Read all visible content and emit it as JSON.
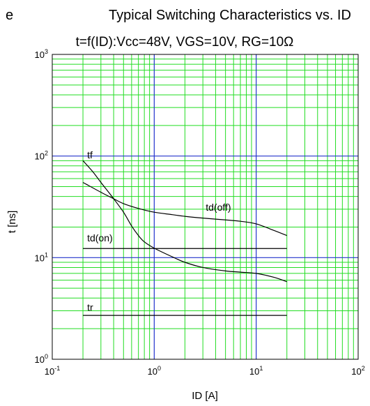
{
  "chart_data": {
    "type": "line",
    "panel_letter": "e",
    "title": "Typical Switching Characteristics vs. ID",
    "subtitle": "t=f(ID):Vcc=48V, VGS=10V, RG=10Ω",
    "xlabel": "ID [A]",
    "ylabel": "t [ns]",
    "x_scale": "log",
    "y_scale": "log",
    "xlim": [
      0.1,
      100
    ],
    "ylim": [
      1,
      1000
    ],
    "x_ticks": [
      {
        "base": "10",
        "exp": "-1"
      },
      {
        "base": "10",
        "exp": "0"
      },
      {
        "base": "10",
        "exp": "1"
      },
      {
        "base": "10",
        "exp": "2"
      }
    ],
    "y_ticks": [
      {
        "base": "10",
        "exp": "0"
      },
      {
        "base": "10",
        "exp": "1"
      },
      {
        "base": "10",
        "exp": "2"
      },
      {
        "base": "10",
        "exp": "3"
      }
    ],
    "grid": true,
    "colors": {
      "minor_grid": "#22dd22",
      "major_grid": "#2233cc",
      "curve": "#000000"
    },
    "series": [
      {
        "name": "tf",
        "x": [
          0.2,
          0.25,
          0.3,
          0.4,
          0.5,
          0.6,
          0.7,
          0.8,
          1.0,
          1.5,
          2,
          3,
          5,
          7,
          10,
          15,
          20
        ],
        "y": [
          90,
          70,
          55,
          38,
          28,
          20.5,
          16.5,
          14.3,
          12.4,
          10.2,
          9.0,
          8.0,
          7.4,
          7.2,
          7.0,
          6.4,
          5.8
        ]
      },
      {
        "name": "td(off)",
        "x": [
          0.2,
          0.3,
          0.4,
          0.5,
          0.7,
          1.0,
          1.5,
          2,
          3,
          5,
          7,
          10,
          15,
          20
        ],
        "y": [
          55,
          44,
          38,
          34,
          30.5,
          28,
          26.5,
          25.5,
          24.5,
          23.5,
          22.8,
          21.5,
          18.5,
          16.5
        ]
      },
      {
        "name": "td(on)",
        "x": [
          0.2,
          20
        ],
        "y": [
          12.3,
          12.3
        ]
      },
      {
        "name": "tr",
        "x": [
          0.2,
          20
        ],
        "y": [
          2.7,
          2.7
        ]
      }
    ],
    "annotations": [
      {
        "text": "tf",
        "x": 0.22,
        "y": 95
      },
      {
        "text": "td(off)",
        "x": 3.2,
        "y": 29
      },
      {
        "text": "td(on)",
        "x": 0.22,
        "y": 14.5
      },
      {
        "text": "tr",
        "x": 0.22,
        "y": 3.0
      }
    ]
  }
}
